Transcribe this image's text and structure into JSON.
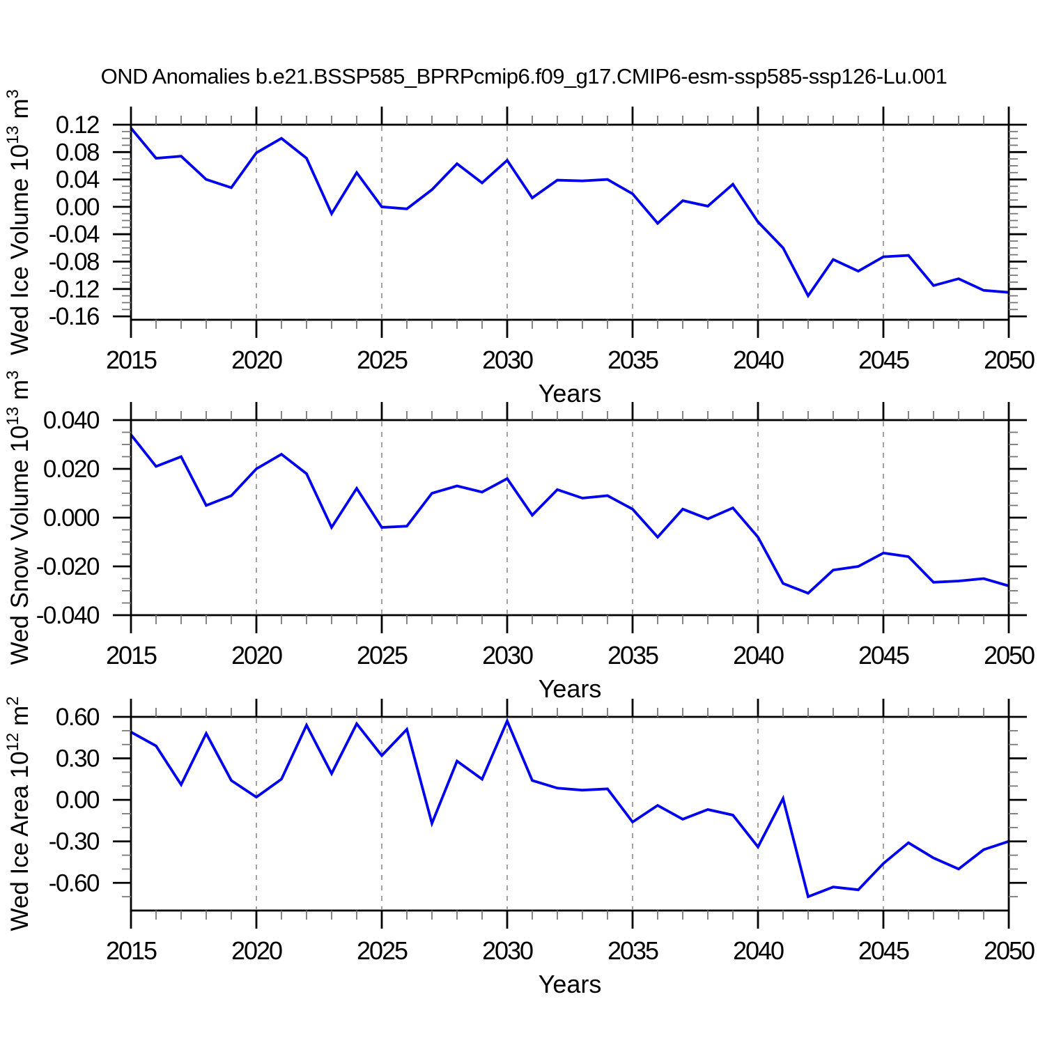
{
  "figure": {
    "title": "OND Anomalies b.e21.BSSP585_BPRPcmip6.f09_g17.CMIP6-esm-ssp585-ssp126-Lu.001",
    "background": "#ffffff"
  },
  "style": {
    "line_color": "#0000EE",
    "axis_color": "#000000",
    "major_tick_color": "#000000",
    "minor_tick_color": "#777777",
    "grid_color": "#999999",
    "text_color": "#000000"
  },
  "chart_data": [
    {
      "type": "line",
      "panel": "ice-volume",
      "title": "",
      "xlabel": "Years",
      "ylabel": "Wed Ice Volume 10^13 m^3",
      "ylabel_parts": [
        {
          "t": "Wed Ice Volume 10"
        },
        {
          "t": "13",
          "sup": true
        },
        {
          "t": " m"
        },
        {
          "t": "3",
          "sup": true
        }
      ],
      "xlim": [
        2015,
        2050
      ],
      "ylim": [
        -0.165,
        0.12
      ],
      "x": [
        2015,
        2016,
        2017,
        2018,
        2019,
        2020,
        2021,
        2022,
        2023,
        2024,
        2025,
        2026,
        2027,
        2028,
        2029,
        2030,
        2031,
        2032,
        2033,
        2034,
        2035,
        2036,
        2037,
        2038,
        2039,
        2040,
        2041,
        2042,
        2043,
        2044,
        2045,
        2046,
        2047,
        2048,
        2049,
        2050
      ],
      "values": [
        0.115,
        0.071,
        0.074,
        0.04,
        0.028,
        0.079,
        0.1,
        0.071,
        -0.01,
        0.05,
        0.0,
        -0.003,
        0.025,
        0.063,
        0.035,
        0.068,
        0.013,
        0.039,
        0.038,
        0.04,
        0.019,
        -0.024,
        0.009,
        0.001,
        0.033,
        -0.022,
        -0.06,
        -0.13,
        -0.077,
        -0.094,
        -0.073,
        -0.071,
        -0.115,
        -0.105,
        -0.122,
        -0.125
      ],
      "ytick_major": [
        0.12,
        0.08,
        0.04,
        0.0,
        -0.04,
        -0.08,
        -0.12,
        -0.16
      ],
      "ytick_labels": [
        "0.12",
        "0.08",
        "0.04",
        "0.00",
        "-0.04",
        "-0.08",
        "-0.12",
        "-0.16"
      ],
      "ytick_minor_step": 0.01,
      "xtick_major": [
        2015,
        2020,
        2025,
        2030,
        2035,
        2040,
        2045,
        2050
      ],
      "xtick_labels": [
        "2015",
        "2020",
        "2025",
        "2030",
        "2035",
        "2040",
        "2045",
        "2050"
      ],
      "xtick_minor_step": 1,
      "grid_x": [
        2020,
        2025,
        2030,
        2035,
        2040,
        2045
      ],
      "grid": "vertical-dashed",
      "legend": "none"
    },
    {
      "type": "line",
      "panel": "snow-volume",
      "title": "",
      "xlabel": "Years",
      "ylabel": "Wed Snow Volume 10^13 m^3",
      "ylabel_parts": [
        {
          "t": "Wed Snow Volume 10"
        },
        {
          "t": "13",
          "sup": true
        },
        {
          "t": " m"
        },
        {
          "t": "3",
          "sup": true
        }
      ],
      "xlim": [
        2015,
        2050
      ],
      "ylim": [
        -0.04,
        0.04
      ],
      "x": [
        2015,
        2016,
        2017,
        2018,
        2019,
        2020,
        2021,
        2022,
        2023,
        2024,
        2025,
        2026,
        2027,
        2028,
        2029,
        2030,
        2031,
        2032,
        2033,
        2034,
        2035,
        2036,
        2037,
        2038,
        2039,
        2040,
        2041,
        2042,
        2043,
        2044,
        2045,
        2046,
        2047,
        2048,
        2049,
        2050
      ],
      "values": [
        0.034,
        0.021,
        0.025,
        0.005,
        0.009,
        0.02,
        0.026,
        0.018,
        -0.004,
        0.012,
        -0.004,
        -0.0035,
        0.01,
        0.013,
        0.0105,
        0.016,
        0.001,
        0.0115,
        0.008,
        0.009,
        0.0035,
        -0.008,
        0.0035,
        -0.0005,
        0.004,
        -0.008,
        -0.027,
        -0.031,
        -0.0215,
        -0.02,
        -0.0145,
        -0.016,
        -0.0265,
        -0.026,
        -0.025,
        -0.028
      ],
      "ytick_major": [
        0.04,
        0.02,
        0.0,
        -0.02,
        -0.04
      ],
      "ytick_labels": [
        "0.040",
        "0.020",
        "0.000",
        "-0.020",
        "-0.040"
      ],
      "ytick_minor_step": 0.005,
      "xtick_major": [
        2015,
        2020,
        2025,
        2030,
        2035,
        2040,
        2045,
        2050
      ],
      "xtick_labels": [
        "2015",
        "2020",
        "2025",
        "2030",
        "2035",
        "2040",
        "2045",
        "2050"
      ],
      "xtick_minor_step": 1,
      "grid_x": [
        2020,
        2025,
        2030,
        2035,
        2040,
        2045
      ],
      "grid": "vertical-dashed",
      "legend": "none"
    },
    {
      "type": "line",
      "panel": "ice-area",
      "title": "",
      "xlabel": "Years",
      "ylabel": "Wed Ice Area 10^12 m^2",
      "ylabel_parts": [
        {
          "t": "Wed Ice Area 10"
        },
        {
          "t": "12",
          "sup": true
        },
        {
          "t": " m"
        },
        {
          "t": "2",
          "sup": true
        }
      ],
      "xlim": [
        2015,
        2050
      ],
      "ylim": [
        -0.8,
        0.6
      ],
      "x": [
        2015,
        2016,
        2017,
        2018,
        2019,
        2020,
        2021,
        2022,
        2023,
        2024,
        2025,
        2026,
        2027,
        2028,
        2029,
        2030,
        2031,
        2032,
        2033,
        2034,
        2035,
        2036,
        2037,
        2038,
        2039,
        2040,
        2041,
        2042,
        2043,
        2044,
        2045,
        2046,
        2047,
        2048,
        2049,
        2050
      ],
      "values": [
        0.49,
        0.39,
        0.11,
        0.48,
        0.14,
        0.02,
        0.15,
        0.54,
        0.19,
        0.55,
        0.32,
        0.51,
        -0.17,
        0.28,
        0.15,
        0.57,
        0.14,
        0.085,
        0.07,
        0.08,
        -0.16,
        -0.04,
        -0.14,
        -0.07,
        -0.11,
        -0.34,
        0.01,
        -0.7,
        -0.63,
        -0.65,
        -0.46,
        -0.31,
        -0.42,
        -0.5,
        -0.36,
        -0.3
      ],
      "ytick_major": [
        0.6,
        0.3,
        0.0,
        -0.3,
        -0.6
      ],
      "ytick_labels": [
        "0.60",
        "0.30",
        "0.00",
        "-0.30",
        "-0.60"
      ],
      "ytick_minor_step": 0.1,
      "xtick_major": [
        2015,
        2020,
        2025,
        2030,
        2035,
        2040,
        2045,
        2050
      ],
      "xtick_labels": [
        "2015",
        "2020",
        "2025",
        "2030",
        "2035",
        "2040",
        "2045",
        "2050"
      ],
      "xtick_minor_step": 1,
      "grid_x": [
        2020,
        2025,
        2030,
        2035,
        2040,
        2045
      ],
      "grid": "vertical-dashed",
      "legend": "none"
    }
  ]
}
